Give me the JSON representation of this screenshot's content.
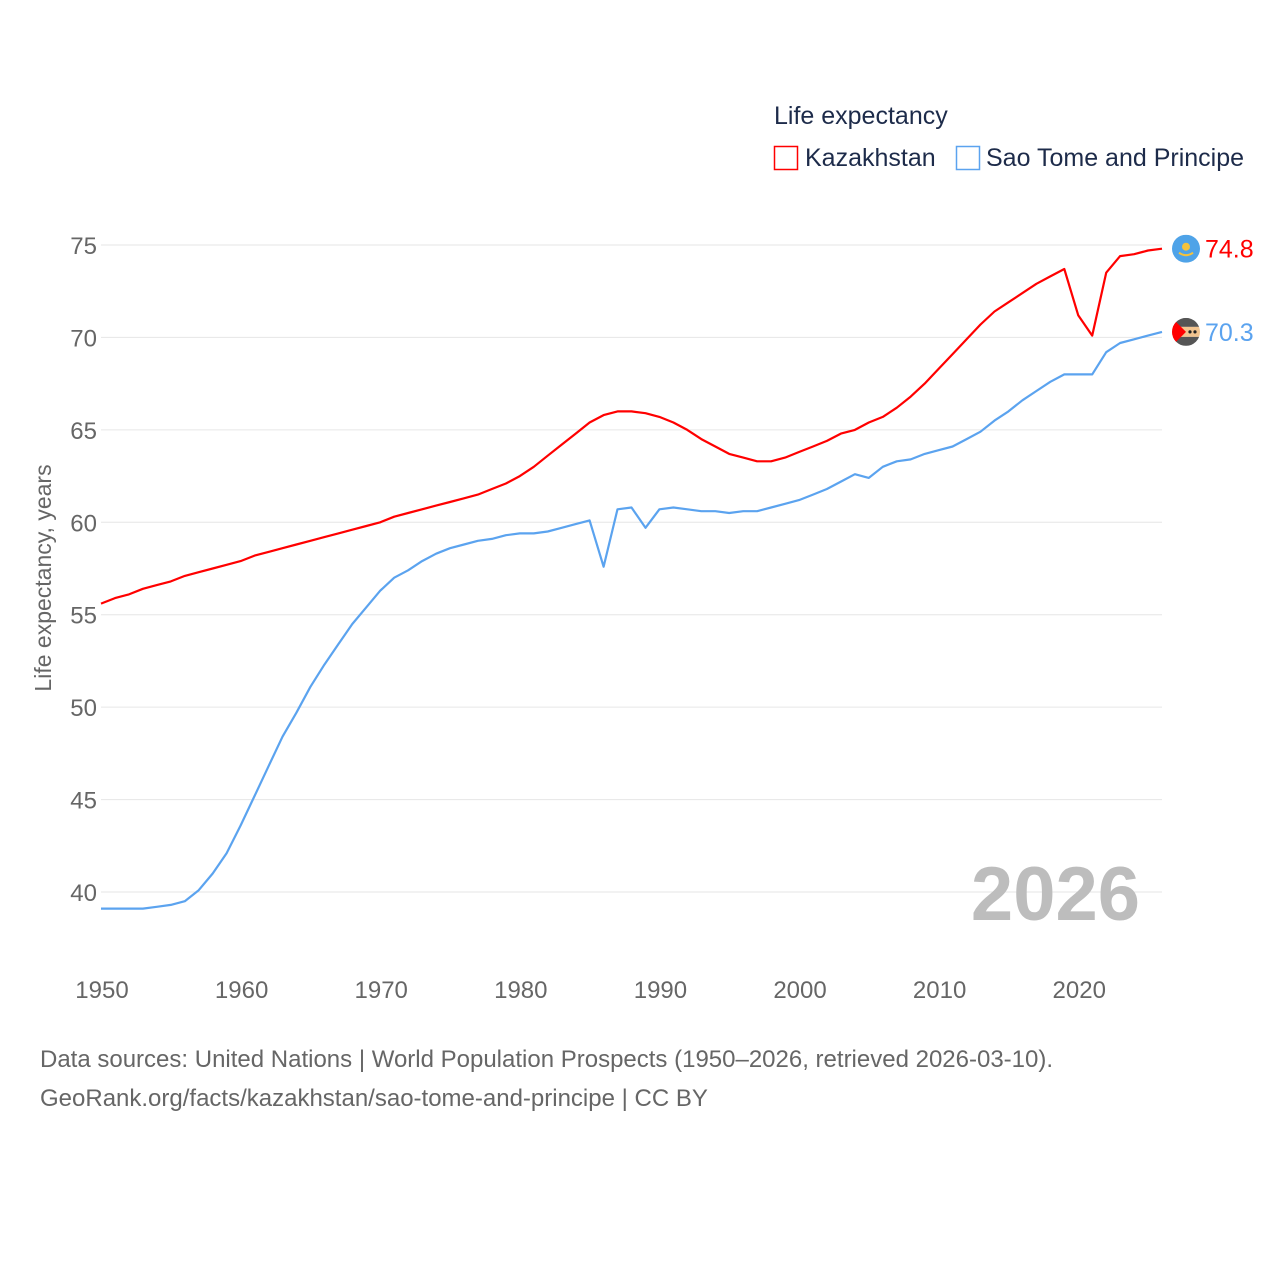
{
  "chart_data": {
    "type": "line",
    "title": "",
    "legend_title": "Life expectancy",
    "legend_position": "top-right",
    "ylabel": "Life expectancy, years",
    "xlabel": "",
    "xlim": [
      1950,
      2026
    ],
    "ylim": [
      40,
      75
    ],
    "x_ticks": [
      1950,
      1960,
      1970,
      1980,
      1990,
      2000,
      2010,
      2020
    ],
    "y_ticks": [
      40,
      45,
      50,
      55,
      60,
      65,
      70,
      75
    ],
    "grid": true,
    "year_label": "2026",
    "x": [
      1950,
      1951,
      1952,
      1953,
      1954,
      1955,
      1956,
      1957,
      1958,
      1959,
      1960,
      1961,
      1962,
      1963,
      1964,
      1965,
      1966,
      1967,
      1968,
      1969,
      1970,
      1971,
      1972,
      1973,
      1974,
      1975,
      1976,
      1977,
      1978,
      1979,
      1980,
      1981,
      1982,
      1983,
      1984,
      1985,
      1986,
      1987,
      1988,
      1989,
      1990,
      1991,
      1992,
      1993,
      1994,
      1995,
      1996,
      1997,
      1998,
      1999,
      2000,
      2001,
      2002,
      2003,
      2004,
      2005,
      2006,
      2007,
      2008,
      2009,
      2010,
      2011,
      2012,
      2013,
      2014,
      2015,
      2016,
      2017,
      2018,
      2019,
      2020,
      2021,
      2022,
      2023,
      2024,
      2025,
      2026
    ],
    "series": [
      {
        "name": "Kazakhstan",
        "color": "#ff0000",
        "end_label": "74.8",
        "flag_icon": "kazakhstan-flag-icon",
        "values": [
          55.6,
          55.9,
          56.1,
          56.4,
          56.6,
          56.8,
          57.1,
          57.3,
          57.5,
          57.7,
          57.9,
          58.2,
          58.4,
          58.6,
          58.8,
          59.0,
          59.2,
          59.4,
          59.6,
          59.8,
          60.0,
          60.3,
          60.5,
          60.7,
          60.9,
          61.1,
          61.3,
          61.5,
          61.8,
          62.1,
          62.5,
          63.0,
          63.6,
          64.2,
          64.8,
          65.4,
          65.8,
          66.0,
          66.0,
          65.9,
          65.7,
          65.4,
          65.0,
          64.5,
          64.1,
          63.7,
          63.5,
          63.3,
          63.3,
          63.5,
          63.8,
          64.1,
          64.4,
          64.8,
          65.0,
          65.4,
          65.7,
          66.2,
          66.8,
          67.5,
          68.3,
          69.1,
          69.9,
          70.7,
          71.4,
          71.9,
          72.4,
          72.9,
          73.3,
          73.7,
          71.2,
          70.1,
          73.5,
          74.4,
          74.5,
          74.7,
          74.8
        ]
      },
      {
        "name": "Sao Tome and Principe",
        "color": "#5ba3ef",
        "end_label": "70.3",
        "flag_icon": "sao-tome-flag-icon",
        "values": [
          39.1,
          39.1,
          39.1,
          39.1,
          39.2,
          39.3,
          39.5,
          40.1,
          41.0,
          42.1,
          43.6,
          45.2,
          46.8,
          48.4,
          49.7,
          51.1,
          52.3,
          53.4,
          54.5,
          55.4,
          56.3,
          57.0,
          57.4,
          57.9,
          58.3,
          58.6,
          58.8,
          59.0,
          59.1,
          59.3,
          59.4,
          59.4,
          59.5,
          59.7,
          59.9,
          60.1,
          57.6,
          60.7,
          60.8,
          59.7,
          60.7,
          60.8,
          60.7,
          60.6,
          60.6,
          60.5,
          60.6,
          60.6,
          60.8,
          61.0,
          61.2,
          61.5,
          61.8,
          62.2,
          62.6,
          62.4,
          63.0,
          63.3,
          63.4,
          63.7,
          63.9,
          64.1,
          64.5,
          64.9,
          65.5,
          66.0,
          66.6,
          67.1,
          67.6,
          68.0,
          68.0,
          68.0,
          69.2,
          69.7,
          69.9,
          70.1,
          70.3
        ]
      }
    ]
  },
  "footer": {
    "source_line": "Data sources: United Nations | World Population Prospects (1950–2026, retrieved 2026-03-10).",
    "url_line": "GeoRank.org/facts/kazakhstan/sao-tome-and-principe | CC BY"
  }
}
